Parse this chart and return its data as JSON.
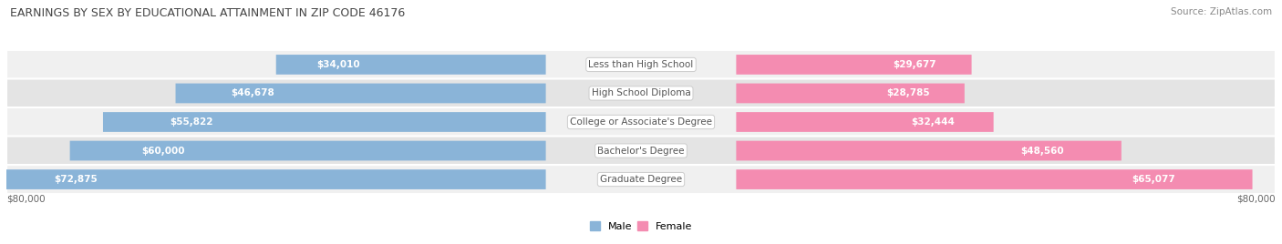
{
  "title": "EARNINGS BY SEX BY EDUCATIONAL ATTAINMENT IN ZIP CODE 46176",
  "source": "Source: ZipAtlas.com",
  "categories": [
    "Less than High School",
    "High School Diploma",
    "College or Associate's Degree",
    "Bachelor's Degree",
    "Graduate Degree"
  ],
  "male_values": [
    34010,
    46678,
    55822,
    60000,
    72875
  ],
  "female_values": [
    29677,
    28785,
    32444,
    48560,
    65077
  ],
  "male_labels": [
    "$34,010",
    "$46,678",
    "$55,822",
    "$60,000",
    "$72,875"
  ],
  "female_labels": [
    "$29,677",
    "$28,785",
    "$32,444",
    "$48,560",
    "$65,077"
  ],
  "max_value": 80000,
  "male_color": "#8ab4d8",
  "female_color": "#f48cb1",
  "row_bg_even": "#f0f0f0",
  "row_bg_odd": "#e4e4e4",
  "title_color": "#444444",
  "label_color_dark": "#444444",
  "label_color_white": "#ffffff",
  "center_label_color": "#555555",
  "source_color": "#888888",
  "axis_label": "$80,000",
  "axis_label_right": "$80,000"
}
